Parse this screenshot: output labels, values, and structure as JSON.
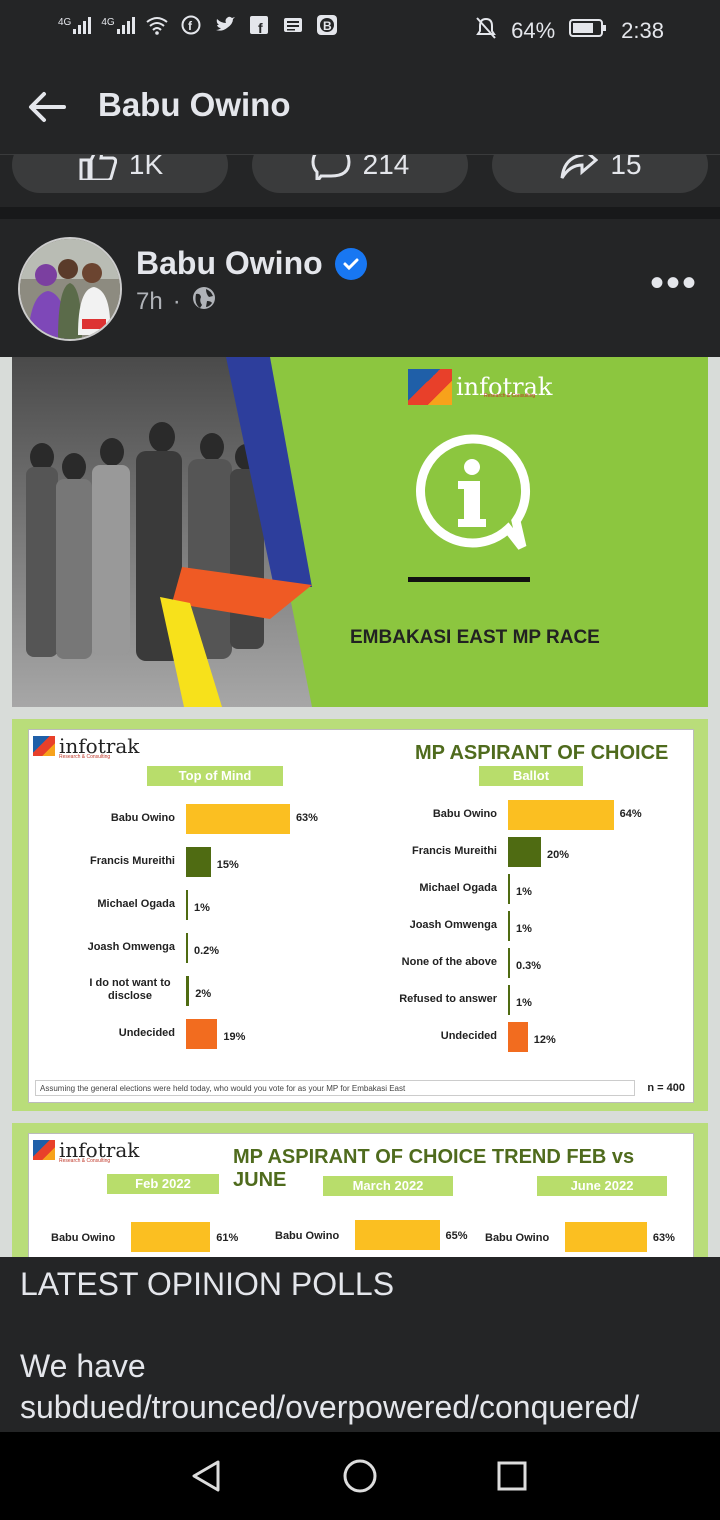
{
  "status_bar": {
    "left_icons": [
      "4g-signal-icon",
      "4g-signal-icon",
      "wifi-icon",
      "facebook-icon",
      "twitter-icon",
      "facebook-square-icon",
      "news-icon",
      "b-app-icon"
    ],
    "signal_label": "4G",
    "battery_percent": "64%",
    "time": "2:38"
  },
  "app_bar": {
    "title": "Babu Owino"
  },
  "reactions": {
    "like_count": "1K",
    "comment_count": "214",
    "share_count": "15"
  },
  "post": {
    "author": "Babu Owino",
    "time": "7h",
    "separator": "·"
  },
  "slide1": {
    "brand": "infotrak",
    "brand_sub": "Research & Consulting",
    "heading": "EMBAKASI EAST MP RACE"
  },
  "slide2": {
    "brand": "infotrak",
    "brand_sub": "Research & Consulting",
    "title": "MP ASPIRANT OF CHOICE",
    "left_header": "Top of Mind",
    "right_header": "Ballot",
    "footnote": "Assuming the general elections were held today, who would you vote for as your MP for Embakasi East",
    "n_label": "n = 400"
  },
  "chart_data": [
    {
      "type": "bar",
      "title": "Top of Mind",
      "categories": [
        "Babu Owino",
        "Francis Mureithi",
        "Michael Ogada",
        "Joash Omwenga",
        "I do not want to disclose",
        "Undecided"
      ],
      "values": [
        63,
        15,
        1,
        0.2,
        2,
        19
      ],
      "value_labels": [
        "63%",
        "15%",
        "1%",
        "0.2%",
        "2%",
        "19%"
      ]
    },
    {
      "type": "bar",
      "title": "Ballot",
      "categories": [
        "Babu Owino",
        "Francis Mureithi",
        "Michael Ogada",
        "Joash Omwenga",
        "None of the above",
        "Refused to answer",
        "Undecided"
      ],
      "values": [
        64,
        20,
        1,
        1,
        0.3,
        1,
        12
      ],
      "value_labels": [
        "64%",
        "20%",
        "1%",
        "1%",
        "0.3%",
        "1%",
        "12%"
      ]
    },
    {
      "type": "bar",
      "title": "MP ASPIRANT OF CHOICE TREND FEB vs JUNE",
      "categories": [
        "Feb 2022",
        "March 2022",
        "June 2022"
      ],
      "series": [
        {
          "name": "Babu Owino",
          "values": [
            61,
            65,
            63
          ]
        }
      ],
      "value_labels": [
        "61%",
        "65%",
        "63%"
      ]
    }
  ],
  "slide3": {
    "brand": "infotrak",
    "brand_sub": "Research & Consulting",
    "title": "MP ASPIRANT OF CHOICE TREND FEB vs JUNE",
    "headers": [
      "Feb 2022",
      "March 2022",
      "June 2022"
    ],
    "row_label": "Babu Owino"
  },
  "caption": {
    "line1": "LATEST OPINION POLLS",
    "line2": "We have",
    "line3": "subdued/trounced/overpowered/conquered/"
  },
  "colors": {
    "bar_primary": "#fbbf21",
    "bar_second": "#4f6b12",
    "bar_undecided": "#f26c1f",
    "bar_small": "#4f6b12"
  }
}
